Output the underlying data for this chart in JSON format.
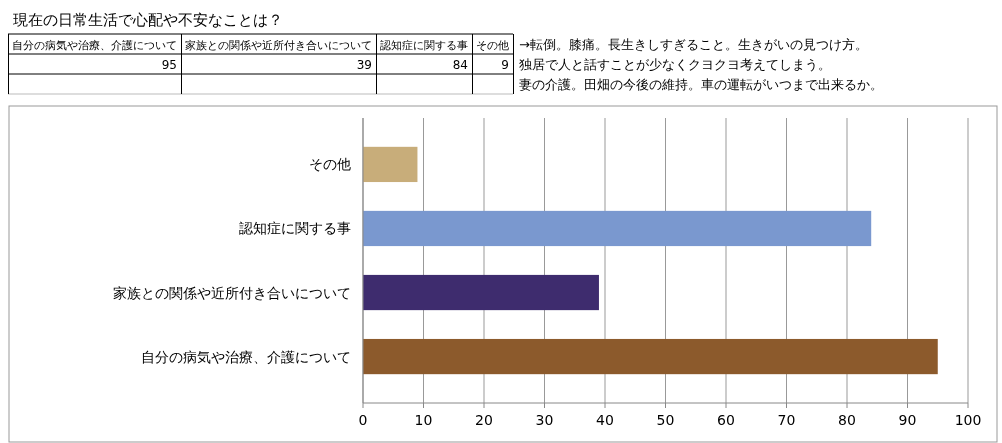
{
  "chart_data": {
    "type": "bar",
    "orientation": "horizontal",
    "title": "現在の日常生活で心配や不安なことは？",
    "categories": [
      "その他",
      "認知症に関する事",
      "家族との関係や近所付き合いについて",
      "自分の病気や治療、介護について"
    ],
    "values": [
      9,
      84,
      39,
      95
    ],
    "colors": [
      "#c8ad7a",
      "#7a98cf",
      "#3e2c6e",
      "#8c5a2c"
    ],
    "xlim": [
      0,
      100
    ],
    "xticks": [
      0,
      10,
      20,
      30,
      40,
      50,
      60,
      70,
      80,
      90,
      100
    ],
    "grid": "x",
    "annotations": [
      "自分の病気や治療、介護について",
      "家族との関係や近所付き合いについて",
      "認知症に関する事",
      "その他",
      "95",
      "39",
      "84",
      "9",
      "→転倒。膝痛。長生きしすぎること。生きがいの見つけ方。",
      "独居で人と話すことが少なくクヨクヨ考えてしまう。",
      "妻の介護。田畑の今後の維持。車の運転がいつまで出来るか。"
    ]
  }
}
